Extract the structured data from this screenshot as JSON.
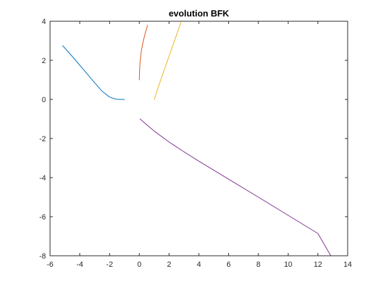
{
  "chart_data": {
    "type": "line",
    "title": "evolution BFK",
    "xlabel": "",
    "ylabel": "",
    "xlim": [
      -6,
      14
    ],
    "ylim": [
      -8,
      4
    ],
    "xticks": [
      -6,
      -4,
      -2,
      0,
      2,
      4,
      6,
      8,
      10,
      12,
      14
    ],
    "yticks": [
      -8,
      -6,
      -4,
      -2,
      0,
      2,
      4
    ],
    "grid": false,
    "series": [
      {
        "color": "#0072BD",
        "x": [
          -5.15,
          -4.6,
          -4.0,
          -3.5,
          -3.0,
          -2.5,
          -2.0,
          -1.7,
          -1.5,
          -1.3,
          -1.1,
          -1.0
        ],
        "y": [
          2.75,
          2.28,
          1.75,
          1.3,
          0.85,
          0.42,
          0.12,
          0.04,
          0.01,
          0.0,
          0.0,
          0.0
        ]
      },
      {
        "color": "#D95319",
        "x": [
          0.0,
          0.02,
          0.06,
          0.12,
          0.2,
          0.3,
          0.42,
          0.55
        ],
        "y": [
          1.0,
          1.5,
          2.0,
          2.4,
          2.75,
          3.1,
          3.45,
          3.8
        ]
      },
      {
        "color": "#EDB120",
        "x": [
          1.0,
          1.3,
          1.6,
          1.9,
          2.2,
          2.5,
          2.8
        ],
        "y": [
          0.0,
          0.7,
          1.35,
          2.0,
          2.65,
          3.3,
          3.95
        ]
      },
      {
        "color": "#7E2F8E",
        "x": [
          0.05,
          0.5,
          1.0,
          2.0,
          3.0,
          4.0,
          6.0,
          8.0,
          10.0,
          12.0,
          12.85
        ],
        "y": [
          -1.0,
          -1.3,
          -1.62,
          -2.18,
          -2.68,
          -3.16,
          -4.08,
          -5.0,
          -5.93,
          -6.86,
          -7.98
        ]
      }
    ]
  }
}
